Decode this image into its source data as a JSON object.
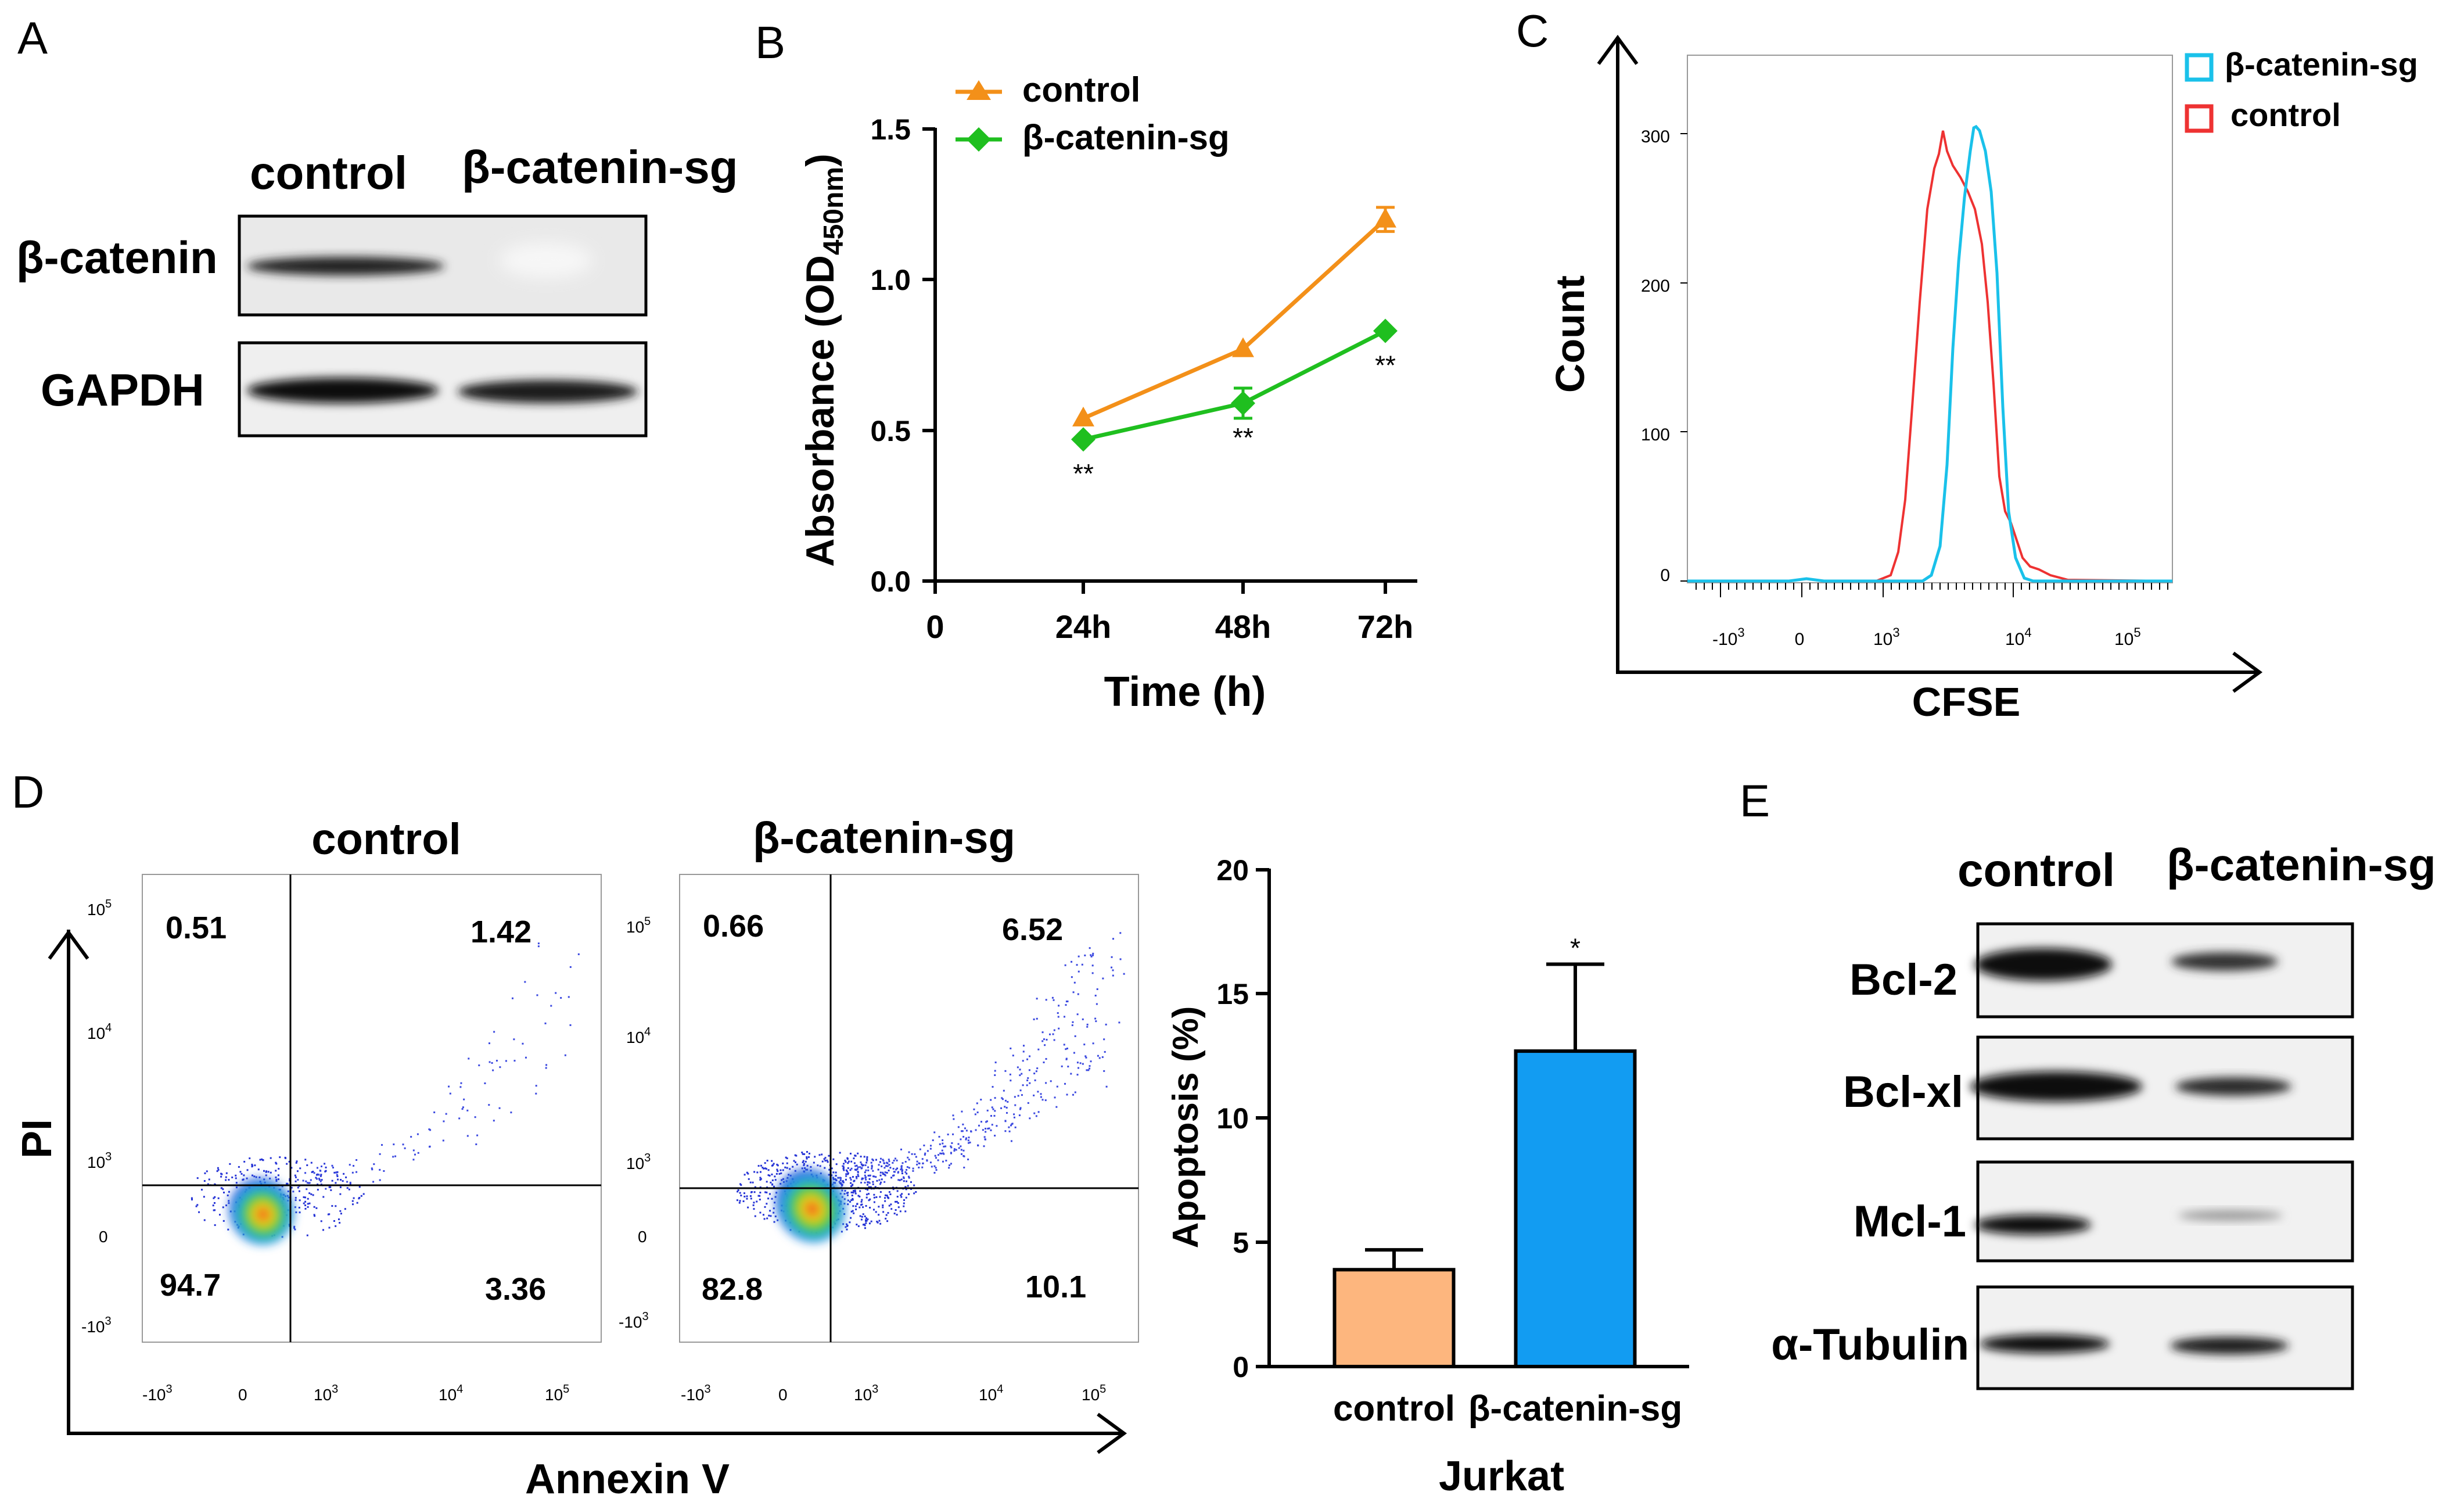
{
  "panels": {
    "a": "A",
    "b": "B",
    "c": "C",
    "d": "D",
    "e": "E"
  },
  "panel_a": {
    "lanes": [
      "control",
      "β-catenin-sg"
    ],
    "rows": [
      "β-catenin",
      "GAPDH"
    ]
  },
  "panel_b": {
    "ylabel_main": "Absorbance (OD",
    "ylabel_sub": "450nm",
    "ylabel_close": ")",
    "xlabel": "Time (h)",
    "xzero": "0",
    "yticks": [
      "0.0",
      "0.5",
      "1.0",
      "1.5"
    ],
    "sig": "**"
  },
  "panel_c": {
    "ylabel": "Count",
    "xlabel": "CFSE",
    "yticks": [
      "0",
      "100",
      "200",
      "300"
    ],
    "xtick_base": "10",
    "xtick_neg": "-10",
    "xtick_zero": "0",
    "exp3": "3",
    "exp4": "4",
    "exp5": "5",
    "legend": [
      "β-catenin-sg",
      "control"
    ]
  },
  "panel_d": {
    "ylabel": "PI",
    "xlabel": "Annexin V",
    "plot_titles": [
      "control",
      "β-catenin-sg"
    ],
    "quadrants_control": [
      "0.51",
      "1.42",
      "94.7",
      "3.36"
    ],
    "quadrants_sg": [
      "0.66",
      "6.52",
      "82.8",
      "10.1"
    ],
    "tick_base": "10",
    "tick_neg": "-10",
    "tick_zero": "0",
    "exp3": "3",
    "exp4": "4",
    "exp5": "5",
    "bar_ylabel": "Apoptosis (%)",
    "bar_xlabel": "Jurkat",
    "bar_yticks": [
      "0",
      "5",
      "10",
      "15",
      "20"
    ],
    "bar_sig": "*"
  },
  "panel_e": {
    "lanes": [
      "control",
      "β-catenin-sg"
    ],
    "rows": [
      "Bcl-2",
      "Bcl-xl",
      "Mcl-1",
      "α-Tubulin"
    ]
  },
  "chart_data": [
    {
      "type": "line",
      "title": "",
      "xlabel": "Time (h)",
      "ylabel": "Absorbance (OD450nm)",
      "categories": [
        "24h",
        "48h",
        "72h"
      ],
      "series": [
        {
          "name": "control",
          "values": [
            0.54,
            0.77,
            1.2
          ],
          "errors": [
            0.0,
            0.0,
            0.04
          ],
          "color": "#f39019",
          "marker": "triangle"
        },
        {
          "name": "β-catenin-sg",
          "values": [
            0.47,
            0.59,
            0.83
          ],
          "errors": [
            0.0,
            0.05,
            0.0
          ],
          "color": "#1fbf1f",
          "marker": "diamond"
        }
      ],
      "ylim": [
        0,
        1.5
      ],
      "annotations": [
        "**",
        "**",
        "**"
      ]
    },
    {
      "type": "bar",
      "title": "",
      "xlabel": "Jurkat",
      "ylabel": "Apoptosis (%)",
      "categories": [
        "control",
        "β-catenin-sg"
      ],
      "values": [
        3.9,
        12.7
      ],
      "errors": [
        0.8,
        3.5
      ],
      "colors": [
        "#fdb67e",
        "#129cf2"
      ],
      "ylim": [
        0,
        20
      ],
      "annotations": [
        "",
        "*"
      ]
    }
  ]
}
